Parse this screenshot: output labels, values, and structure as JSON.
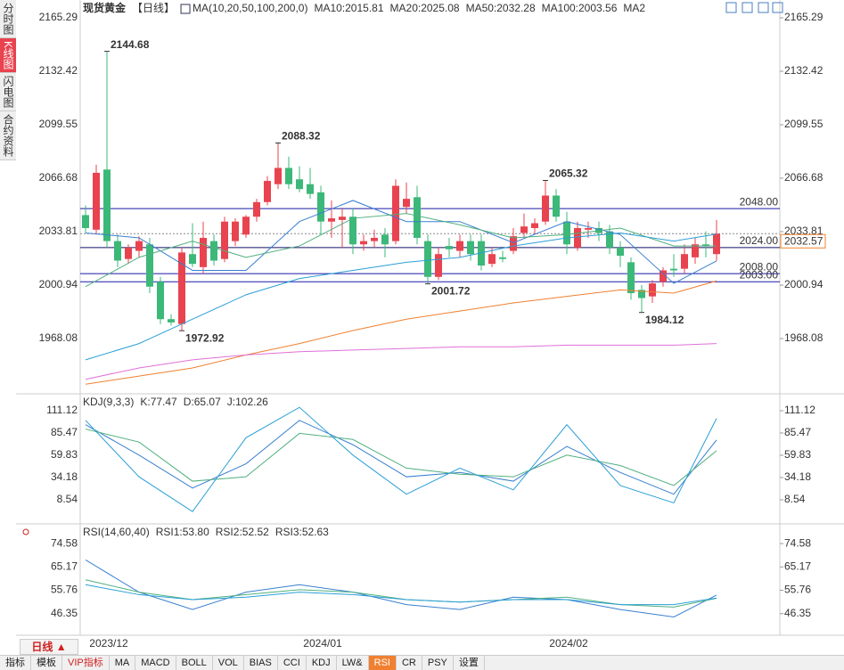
{
  "chart_data": [
    {
      "type": "candlestick",
      "title": "现货黄金",
      "subtitle": "【日线】",
      "indicator": "MA(10,20,50,100,200,0)",
      "up_color": "#e8434f",
      "down_color": "#3cb878",
      "categories": [
        null,
        "2023/12",
        null,
        null,
        null,
        null,
        null,
        null,
        null,
        null,
        null,
        null,
        null,
        null,
        null,
        null,
        null,
        null,
        null,
        null,
        null,
        "2024/01",
        null,
        null,
        null,
        null,
        null,
        null,
        null,
        null,
        null,
        null,
        null,
        null,
        null,
        null,
        null,
        null,
        null,
        null,
        null,
        null,
        null,
        null,
        "2024/02",
        null,
        null,
        null,
        null,
        null,
        null,
        null,
        null,
        null,
        null,
        null,
        null,
        null,
        null,
        null
      ],
      "open": [
        2044,
        2035,
        2072,
        2028,
        2017,
        2022,
        2026,
        2003,
        1980,
        1977,
        2020,
        2012,
        2028,
        2017,
        2028,
        2032,
        2043,
        2052,
        2063,
        2073,
        2066,
        2063,
        2058,
        2040,
        2041,
        2043,
        2026,
        2028,
        2032,
        2028,
        2049,
        2055,
        2028,
        2006,
        2025,
        2022,
        2028,
        2028,
        2014,
        2018,
        2022,
        2033,
        2036,
        2040,
        2056,
        2040,
        2024,
        2035,
        2036,
        2034,
        2024,
        2015,
        1998,
        1994,
        2003,
        2011,
        2011,
        2018,
        2026,
        2020
      ],
      "high": [
        2050,
        2075,
        2144.68,
        2032,
        2026,
        2031,
        2030,
        2006,
        1983,
        2024,
        2039,
        2040,
        2032,
        2043,
        2042,
        2044,
        2054,
        2068,
        2088.32,
        2080,
        2074,
        2073,
        2062,
        2053,
        2048,
        2048,
        2032,
        2035,
        2036,
        2066,
        2064,
        2062,
        2032,
        2024,
        2030,
        2032,
        2032,
        2032,
        2024,
        2022,
        2036,
        2045,
        2042,
        2065.32,
        2060,
        2046,
        2040,
        2040,
        2040,
        2038,
        2028,
        2018,
        2001,
        2004,
        2012,
        2020,
        2026,
        2030,
        2034,
        2041
      ],
      "low": [
        2033,
        2032,
        2024,
        2012,
        2014,
        2018,
        1996,
        1977,
        1976,
        1972.92,
        2012,
        2008,
        2013,
        2015,
        2025,
        2030,
        2040,
        2050,
        2060,
        2060,
        2058,
        2054,
        2032,
        2030,
        2024,
        2020,
        2022,
        2024,
        2018,
        2026,
        2045,
        2026,
        2001.72,
        2004,
        2018,
        2018,
        2016,
        2010,
        2012,
        2015,
        2020,
        2030,
        2032,
        2038,
        2040,
        2020,
        2022,
        2030,
        2028,
        2020,
        2012,
        1992,
        1984.12,
        1990,
        2000,
        2006,
        2008,
        2014,
        2018,
        2016
      ],
      "close": [
        2036,
        2070,
        2028,
        2016,
        2024,
        2028,
        2000,
        1980,
        1978,
        2021,
        2014,
        2030,
        2016,
        2040,
        2040,
        2043,
        2052,
        2065,
        2073,
        2063,
        2060,
        2057,
        2040,
        2042,
        2043,
        2026,
        2028,
        2030,
        2026,
        2062,
        2054,
        2030,
        2006,
        2020,
        2023,
        2028,
        2020,
        2013,
        2020,
        2017,
        2031,
        2037,
        2039,
        2056,
        2043,
        2026,
        2036,
        2036,
        2033,
        2024,
        2019,
        1996,
        1993,
        2002,
        2010,
        2010,
        2020,
        2026,
        2025,
        2032.57
      ],
      "high_labels": [
        2144.68,
        2088.32,
        2065.32
      ],
      "low_labels": [
        1972.92,
        2001.72,
        1984.12
      ],
      "hlines": [
        {
          "value": 2048,
          "label": "2048.00",
          "color": "#1a1aa8"
        },
        {
          "value": 2024,
          "label": "2024.00",
          "color": "#111166"
        },
        {
          "value": 2008,
          "label": "2008.00",
          "color": "#1a1aa8"
        },
        {
          "value": 2003,
          "label": "2003.00",
          "color": "#1a1aa8"
        }
      ],
      "last_price": 2032.57,
      "last_color": "#f08030",
      "ylim": [
        1935.2,
        2176.25
      ],
      "yticks": [
        1968.08,
        2000.94,
        2033.81,
        2066.68,
        2099.55,
        2132.42,
        2165.29
      ],
      "x": [
        0,
        5,
        10,
        15,
        20,
        25,
        30,
        35,
        40,
        45,
        50,
        55,
        59
      ],
      "series": [
        {
          "name": "MA10:2015.81",
          "color": "#3a7fd0",
          "values": [
            2033,
            2030,
            2010,
            2010,
            2040,
            2053,
            2040,
            2040,
            2027,
            2040,
            2032,
            2002,
            2015.81
          ]
        },
        {
          "name": "MA20:2025.08",
          "color": "#4fb07e",
          "values": [
            2000,
            2018,
            2028,
            2018,
            2025,
            2042,
            2045,
            2038,
            2030,
            2032,
            2036,
            2025,
            2025.08
          ]
        },
        {
          "name": "MA50:2032.28",
          "color": "#2a9fd6",
          "values": [
            1955,
            1965,
            1980,
            1995,
            2005,
            2010,
            2015,
            2018,
            2025,
            2030,
            2033,
            2028,
            2032.28
          ]
        },
        {
          "name": "MA100:2003.56",
          "color": "#f08030",
          "values": [
            1940,
            1945,
            1950,
            1958,
            1965,
            1973,
            1980,
            1985,
            1990,
            1994,
            1998,
            1996,
            2003.56
          ]
        },
        {
          "name": "MA2",
          "color": "#e070d8",
          "values": [
            1943,
            1950,
            1955,
            1958,
            1960,
            1961,
            1962,
            1963,
            1963,
            1964,
            1964,
            1964,
            1965
          ]
        }
      ]
    },
    {
      "type": "line",
      "title": "KDJ(9,3,3)",
      "ylim": [
        -16.1,
        127.5
      ],
      "yticks": [
        8.54,
        34.18,
        59.83,
        85.47,
        111.12
      ],
      "x": [
        0,
        5,
        10,
        15,
        20,
        25,
        30,
        35,
        40,
        45,
        50,
        55,
        59
      ],
      "series": [
        {
          "name": "K:77.47",
          "color": "#3a7fd0",
          "values": [
            95,
            60,
            22,
            50,
            100,
            72,
            35,
            40,
            30,
            70,
            40,
            15,
            77.47
          ]
        },
        {
          "name": "D:65.07",
          "color": "#4fb07e",
          "values": [
            90,
            75,
            30,
            35,
            85,
            78,
            45,
            38,
            35,
            60,
            48,
            25,
            65.07
          ]
        },
        {
          "name": "J:102.26",
          "color": "#2a9fd6",
          "values": [
            100,
            35,
            -5,
            80,
            115,
            60,
            15,
            45,
            20,
            95,
            25,
            5,
            102.26
          ]
        }
      ]
    },
    {
      "type": "line",
      "title": "RSI(14,60,40)",
      "ylim": [
        38,
        81.8
      ],
      "yticks": [
        46.35,
        55.76,
        65.17,
        74.58
      ],
      "x": [
        0,
        5,
        10,
        15,
        20,
        25,
        30,
        35,
        40,
        45,
        50,
        55,
        59
      ],
      "series": [
        {
          "name": "RSI1:53.80",
          "color": "#3a7fd0",
          "values": [
            68,
            55,
            48,
            55,
            58,
            55,
            50,
            48,
            53,
            52,
            48,
            45,
            53.8
          ]
        },
        {
          "name": "RSI2:52.52",
          "color": "#4fb07e",
          "values": [
            60,
            55,
            52,
            54,
            56,
            55,
            52,
            51,
            52,
            53,
            50,
            49,
            52.52
          ]
        },
        {
          "name": "RSI3:52.63",
          "color": "#2a9fd6",
          "values": [
            58,
            54,
            52,
            53,
            55,
            54,
            52,
            51,
            52,
            52,
            50,
            50,
            52.63
          ]
        }
      ]
    }
  ],
  "ui": {
    "sidebar": [
      "分时图",
      "K线图",
      "闪电图",
      "合约资料"
    ],
    "sidebar_active": "K线图",
    "period": "日线 ▲",
    "toolbar": [
      "指标",
      "模板",
      "VIP指标",
      "MA",
      "MACD",
      "BOLL",
      "VOL",
      "BIAS",
      "CCI",
      "KDJ",
      "LW&",
      "RSI",
      "CR",
      "PSY",
      "设置"
    ],
    "toolbar_active": "RSI"
  }
}
